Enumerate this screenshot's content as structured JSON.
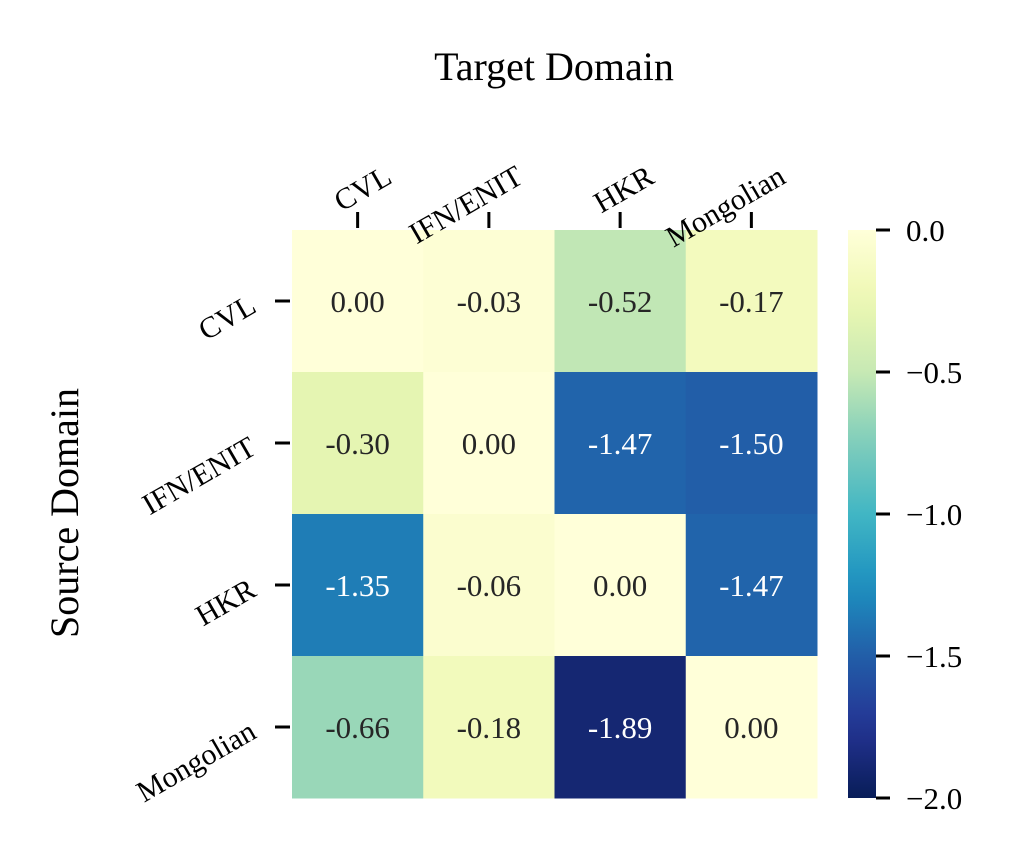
{
  "chart_data": {
    "type": "heatmap",
    "xlabel": "Target Domain",
    "ylabel": "Source Domain",
    "x_categories": [
      "CVL",
      "IFN/ENIT",
      "HKR",
      "Mongolian"
    ],
    "y_categories": [
      "CVL",
      "IFN/ENIT",
      "HKR",
      "Mongolian"
    ],
    "values": [
      [
        0.0,
        -0.03,
        -0.52,
        -0.17
      ],
      [
        -0.3,
        0.0,
        -1.47,
        -1.5
      ],
      [
        -1.35,
        -0.06,
        0.0,
        -1.47
      ],
      [
        -0.66,
        -0.18,
        -1.89,
        0.0
      ]
    ],
    "value_labels": [
      [
        "0.00",
        "-0.03",
        "-0.52",
        "-0.17"
      ],
      [
        "-0.30",
        "0.00",
        "-1.47",
        "-1.50"
      ],
      [
        "-1.35",
        "-0.06",
        "0.00",
        "-1.47"
      ],
      [
        "-0.66",
        "-0.18",
        "-1.89",
        "0.00"
      ]
    ],
    "colorbar": {
      "min": -2.0,
      "max": 0.0,
      "ticks": [
        0.0,
        -0.5,
        -1.0,
        -1.5,
        -2.0
      ],
      "tick_labels": [
        "0.0",
        "−0.5",
        "−1.0",
        "−1.5",
        "−2.0"
      ],
      "colormap": "YlGnBu_r",
      "placement": "right"
    },
    "x_axis_position": "top",
    "grid": false
  }
}
